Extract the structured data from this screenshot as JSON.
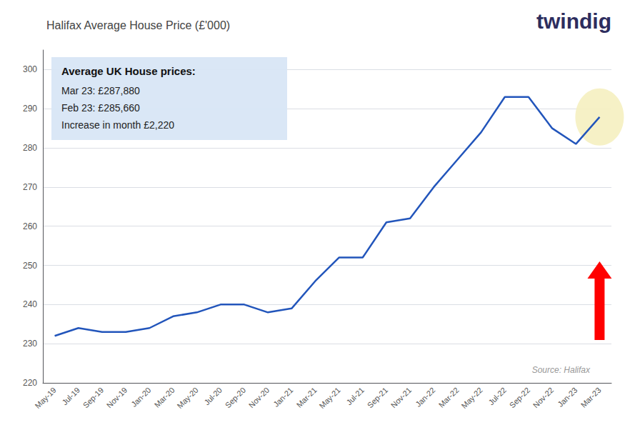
{
  "chart_data": {
    "type": "line",
    "title": "Halifax Average House Price (£'000)",
    "categories": [
      "May-19",
      "Jul-19",
      "Sep-19",
      "Nov-19",
      "Jan-20",
      "Mar-20",
      "May-20",
      "Jul-20",
      "Sep-20",
      "Nov-20",
      "Jan-21",
      "Mar-21",
      "May-21",
      "Jul-21",
      "Sep-21",
      "Nov-21",
      "Jan-22",
      "Mar-22",
      "May-22",
      "Jul-22",
      "Sep-22",
      "Nov-22",
      "Jan-23",
      "Mar-23"
    ],
    "values": [
      232,
      234,
      233,
      233,
      234,
      237,
      238,
      240,
      240,
      238,
      239,
      246,
      252,
      252,
      261,
      262,
      270,
      277,
      284,
      293,
      293,
      285,
      281,
      287.88
    ],
    "color": "#2255bb",
    "ylim": [
      220,
      305
    ],
    "yticks": [
      220,
      230,
      240,
      250,
      260,
      270,
      280,
      290,
      300
    ],
    "grid": true,
    "annotation_title": "Average UK House prices:",
    "annotations": [
      "Mar 23: £287,880",
      "Feb 23: £285,660",
      "Increase in month £2,220"
    ],
    "source": "Source: Halifax",
    "logo": "twindig"
  }
}
